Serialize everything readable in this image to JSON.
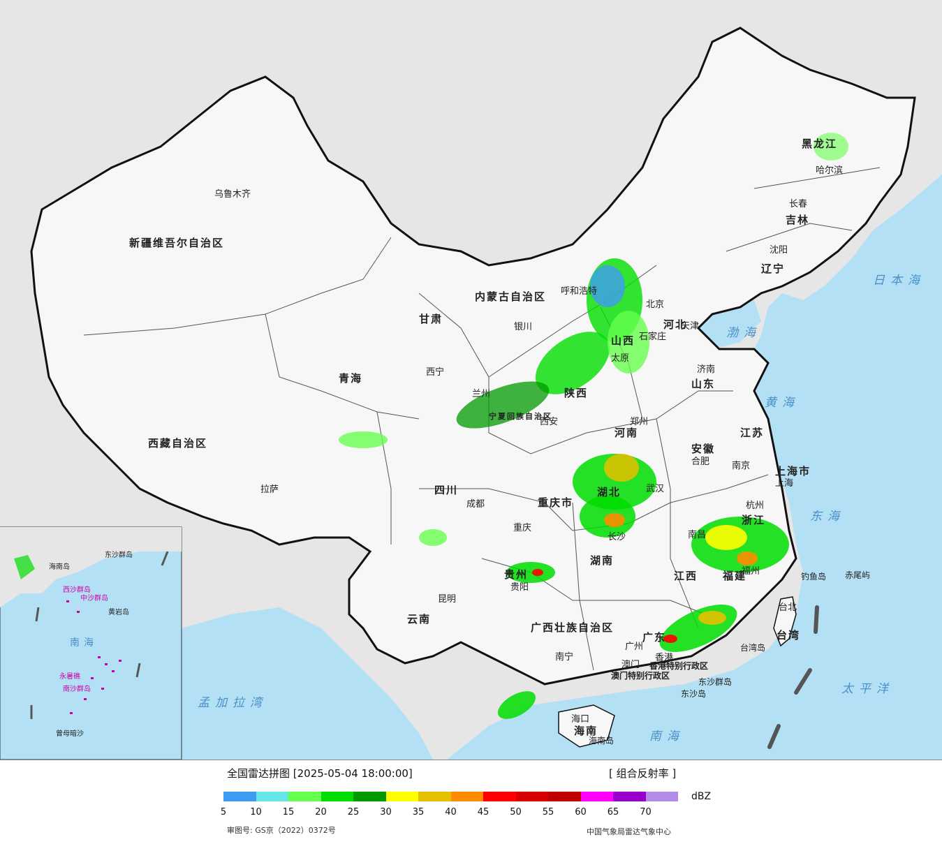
{
  "header": {
    "title": "全国雷达拼图 [2025-05-04 18:00:00]",
    "product": "[ 组合反射率 ]",
    "unit": "dBZ"
  },
  "colors": {
    "sea": "#b3e0f5",
    "foreign_land": "#e6e6e6",
    "china_land": "#f7f7f7",
    "border": "#111111"
  },
  "scale": {
    "colors": [
      "#3e9bf2",
      "#66e6e6",
      "#66ff4d",
      "#00dd00",
      "#009a00",
      "#ffff00",
      "#e6c000",
      "#ff8c00",
      "#ff0000",
      "#d60000",
      "#c00000",
      "#ff00ff",
      "#9900cc",
      "#b08ce8"
    ],
    "ticks": [
      "5",
      "10",
      "15",
      "20",
      "25",
      "30",
      "35",
      "40",
      "45",
      "50",
      "55",
      "60",
      "65",
      "70"
    ]
  },
  "footer": {
    "map_approval": "审图号: GS京（2022）0372号",
    "agency": "中国气象局雷达气象中心"
  },
  "provinces": [
    "新疆维吾尔自治区",
    "西藏自治区",
    "青海",
    "甘肃",
    "四川",
    "云南",
    "内蒙古自治区",
    "黑龙江",
    "吉林",
    "辽宁",
    "河北",
    "山西",
    "山东",
    "河南",
    "陕西",
    "湖北",
    "湖南",
    "安徽",
    "江苏",
    "浙江",
    "江西",
    "福建",
    "广东",
    "广西壮族自治区",
    "贵州",
    "重庆市",
    "上海市",
    "宁夏回族自治区",
    "台湾",
    "海南"
  ],
  "cities": [
    "乌鲁木齐",
    "拉萨",
    "西宁",
    "兰州",
    "银川",
    "呼和浩特",
    "北京",
    "天津",
    "石家庄",
    "太原",
    "济南",
    "郑州",
    "西安",
    "成都",
    "重庆",
    "昆明",
    "贵阳",
    "南宁",
    "长沙",
    "武汉",
    "合肥",
    "南京",
    "上海",
    "杭州",
    "南昌",
    "福州",
    "广州",
    "澳门",
    "香港",
    "台北",
    "海口",
    "沈阳",
    "长春",
    "哈尔滨"
  ],
  "sea_labels": [
    "日本海",
    "渤海",
    "黄海",
    "东海",
    "太平洋",
    "南海",
    "孟加拉湾"
  ],
  "islands": [
    "钓鱼岛",
    "赤尾屿",
    "东沙群岛",
    "东沙岛",
    "台湾岛",
    "海南岛",
    "香港特别行政区",
    "澳门特别行政区"
  ],
  "inset_labels": [
    "南海",
    "东沙群岛",
    "西沙群岛",
    "中沙群岛",
    "南沙群岛",
    "海南岛",
    "黄岩岛",
    "永暑礁",
    "曾母暗沙"
  ]
}
